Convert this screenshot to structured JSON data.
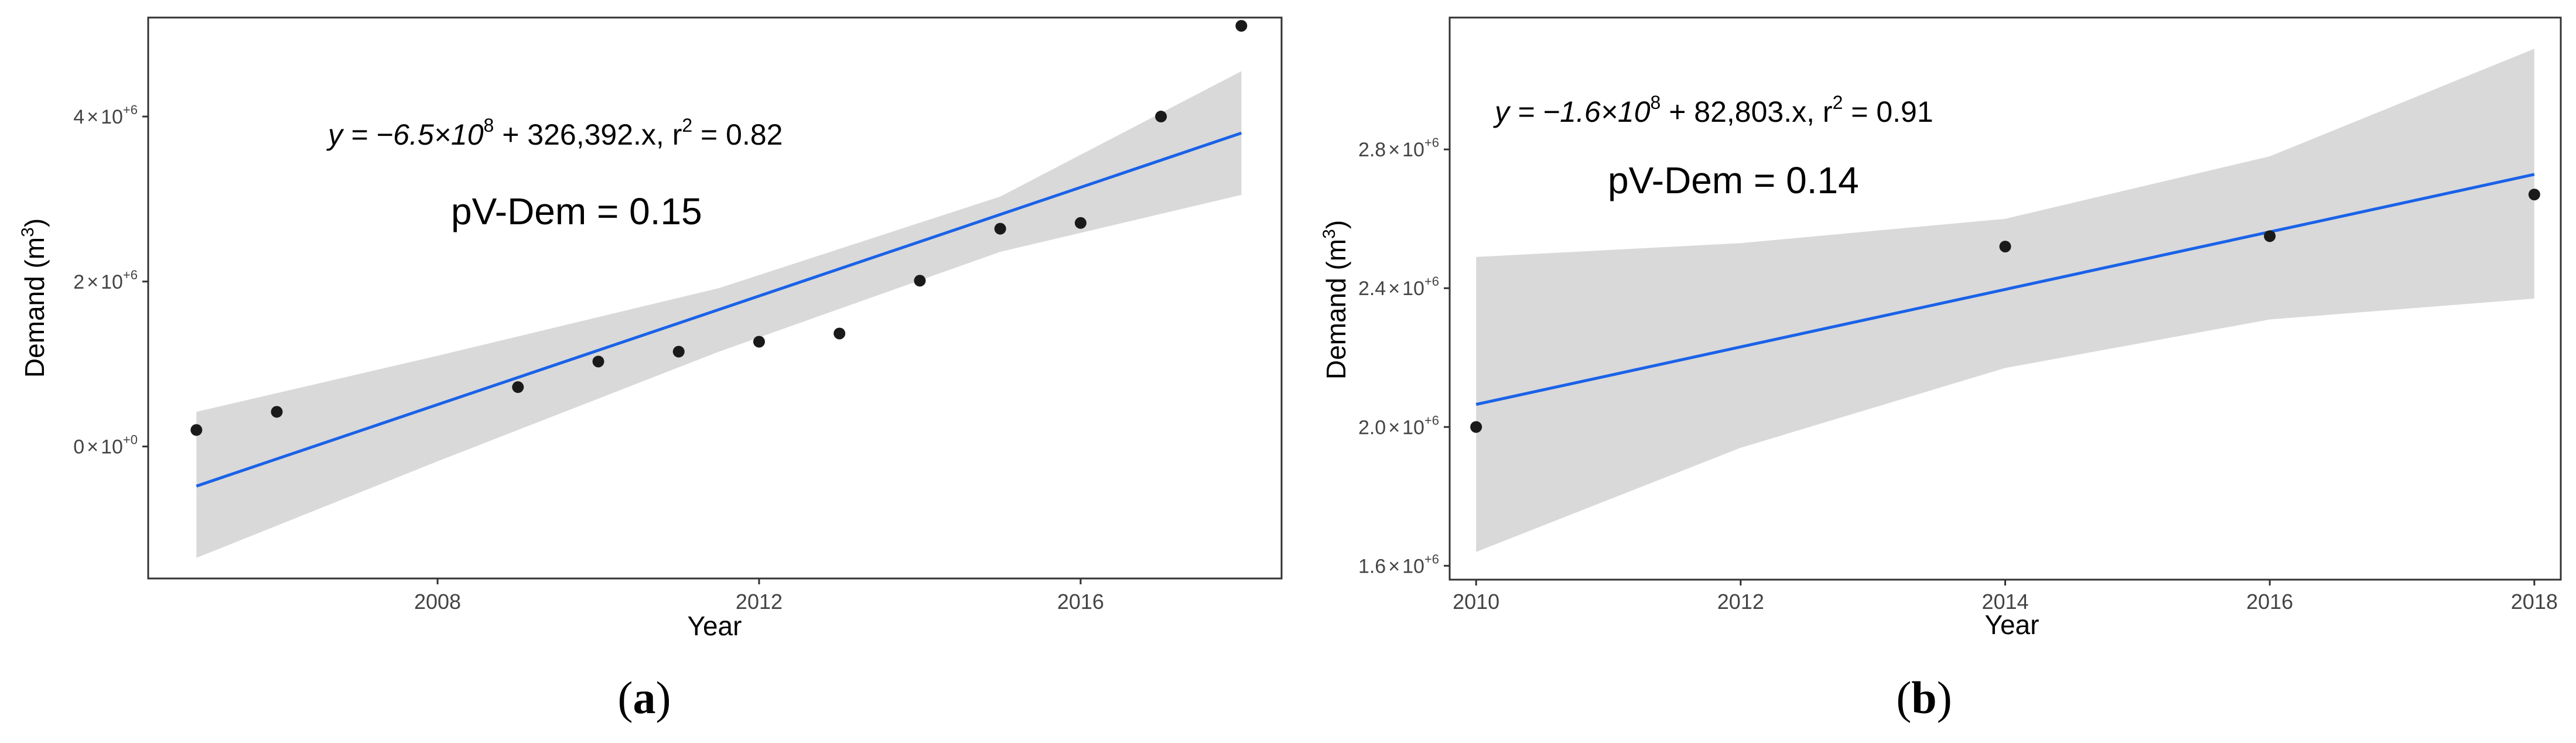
{
  "chart_data": [
    {
      "panel": "a",
      "type": "scatter",
      "xlabel": "Year",
      "ylabel_main": "Demand (m",
      "ylabel_sup": "3",
      "ylabel_end": ")",
      "xlim": [
        2004.4,
        2018.5
      ],
      "ylim": [
        -1600000,
        5200000
      ],
      "xticks": [
        2008,
        2012,
        2016
      ],
      "x_tick_labels": [
        "2008",
        "2012",
        "2016"
      ],
      "yticks": [
        0,
        2000000,
        4000000
      ],
      "y_tick_labels": [
        {
          "mant": "0",
          "times": "×",
          "base": "10",
          "exp": "+0"
        },
        {
          "mant": "2",
          "times": "×",
          "base": "10",
          "exp": "+6"
        },
        {
          "mant": "4",
          "times": "×",
          "base": "10",
          "exp": "+6"
        }
      ],
      "points": [
        {
          "x": 2005,
          "y": 200000
        },
        {
          "x": 2006,
          "y": 420000
        },
        {
          "x": 2009,
          "y": 720000
        },
        {
          "x": 2010,
          "y": 1030000
        },
        {
          "x": 2011,
          "y": 1150000
        },
        {
          "x": 2012,
          "y": 1270000
        },
        {
          "x": 2013,
          "y": 1370000
        },
        {
          "x": 2014,
          "y": 2010000
        },
        {
          "x": 2015,
          "y": 2640000
        },
        {
          "x": 2016,
          "y": 2710000
        },
        {
          "x": 2017,
          "y": 4000000
        },
        {
          "x": 2018,
          "y": 5100000
        }
      ],
      "fit_line": {
        "x": [
          2005,
          2018
        ],
        "y": [
          -480000,
          3800000
        ]
      },
      "confidence_band": {
        "x": [
          2005,
          2008,
          2011.5,
          2015,
          2018
        ],
        "upper": [
          420000,
          1100000,
          1920000,
          3030000,
          4550000
        ],
        "lower": [
          -1350000,
          -180000,
          1150000,
          2360000,
          3050000
        ]
      },
      "equation": {
        "lead": "y = −6.5×10",
        "sup1": "8",
        "mid": " + 326,392.x,  r",
        "sup2": "2",
        "tail": " = 0.82"
      },
      "annotation": "pV-Dem = 0.15",
      "caption": {
        "open": "(",
        "letter": "a",
        "close": ")"
      }
    },
    {
      "panel": "b",
      "type": "scatter",
      "xlabel": "Year",
      "ylabel_main": "Demand (m",
      "ylabel_sup": "3",
      "ylabel_end": ")",
      "xlim": [
        2009.8,
        2018.2
      ],
      "ylim": [
        1560000,
        3180000
      ],
      "xticks": [
        2010,
        2012,
        2014,
        2016,
        2018
      ],
      "x_tick_labels": [
        "2010",
        "2012",
        "2014",
        "2016",
        "2018"
      ],
      "yticks": [
        1600000,
        2000000,
        2400000,
        2800000
      ],
      "y_tick_labels": [
        {
          "mant": "1.6",
          "times": "×",
          "base": "10",
          "exp": "+6"
        },
        {
          "mant": "2.0",
          "times": "×",
          "base": "10",
          "exp": "+6"
        },
        {
          "mant": "2.4",
          "times": "×",
          "base": "10",
          "exp": "+6"
        },
        {
          "mant": "2.8",
          "times": "×",
          "base": "10",
          "exp": "+6"
        }
      ],
      "points": [
        {
          "x": 2010,
          "y": 2000000
        },
        {
          "x": 2014,
          "y": 2520000
        },
        {
          "x": 2016,
          "y": 2550000
        },
        {
          "x": 2018,
          "y": 2670000
        }
      ],
      "fit_line": {
        "x": [
          2010,
          2018
        ],
        "y": [
          2065000,
          2728000
        ]
      },
      "confidence_band": {
        "x": [
          2010,
          2012,
          2014,
          2016,
          2018
        ],
        "upper": [
          2490000,
          2530000,
          2600000,
          2780000,
          3090000
        ],
        "lower": [
          1640000,
          1940000,
          2170000,
          2310000,
          2370000
        ]
      },
      "equation": {
        "lead": "y = −1.6×10",
        "sup1": "8",
        "mid": " + 82,803.x,  r",
        "sup2": "2",
        "tail": " = 0.91"
      },
      "annotation": "pV-Dem = 0.14",
      "caption": {
        "open": "(",
        "letter": "b",
        "close": ")"
      }
    }
  ]
}
